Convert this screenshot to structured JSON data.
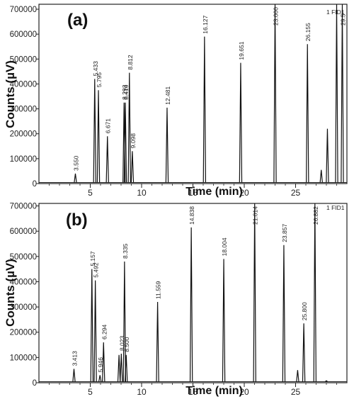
{
  "chart_data": [
    {
      "type": "line",
      "panel_label": "(a)",
      "xlabel": "Time (min)",
      "ylabel": "Counts (µV)",
      "xlim": [
        0,
        30
      ],
      "ylim": [
        0,
        720000
      ],
      "x_ticks": [
        5,
        10,
        15,
        20,
        25
      ],
      "y_ticks": [
        0,
        100000,
        200000,
        300000,
        400000,
        500000,
        600000,
        700000
      ],
      "y_tick_labels": [
        "0",
        "100000",
        "200000",
        "300000",
        "400000",
        "500000",
        "600000",
        "700000"
      ],
      "trace_label": "1 FID1",
      "grid": false,
      "peaks": [
        {
          "rt": 3.55,
          "label": "3.550",
          "height": 40000
        },
        {
          "rt": 5.433,
          "label": "5.433",
          "height": 420000
        },
        {
          "rt": 5.795,
          "label": "5.795",
          "height": 375000
        },
        {
          "rt": 6.671,
          "label": "6.671",
          "height": 190000
        },
        {
          "rt": 8.293,
          "label": "8.293",
          "height": 325000
        },
        {
          "rt": 8.416,
          "label": "8.416",
          "height": 325000
        },
        {
          "rt": 8.812,
          "label": "8.812",
          "height": 445000
        },
        {
          "rt": 9.098,
          "label": "9.098",
          "height": 130000
        },
        {
          "rt": 12.481,
          "label": "12.481",
          "height": 305000
        },
        {
          "rt": 16.127,
          "label": "16.127",
          "height": 590000
        },
        {
          "rt": 19.651,
          "label": "19.651",
          "height": 485000
        },
        {
          "rt": 23.0,
          "label": "23.000",
          "height": 720000
        },
        {
          "rt": 26.155,
          "label": "26.155",
          "height": 560000
        },
        {
          "rt": 27.5,
          "label": "",
          "height": 55000
        },
        {
          "rt": 28.1,
          "label": "",
          "height": 220000
        },
        {
          "rt": 29.0,
          "label": "",
          "height": 720000
        },
        {
          "rt": 29.55,
          "label": "29.5",
          "height": 720000
        }
      ]
    },
    {
      "type": "line",
      "panel_label": "(b)",
      "xlabel": "Time (min)",
      "ylabel": "Counts (µV)",
      "xlim": [
        0,
        30
      ],
      "ylim": [
        0,
        710000
      ],
      "x_ticks": [
        5,
        10,
        15,
        20,
        25
      ],
      "y_ticks": [
        0,
        100000,
        200000,
        300000,
        400000,
        500000,
        600000,
        700000
      ],
      "y_tick_labels": [
        "0",
        "100000",
        "200000",
        "300000",
        "400000",
        "500000",
        "600000",
        "700000"
      ],
      "trace_label": "1 FID1",
      "grid": false,
      "peaks": [
        {
          "rt": 3.413,
          "label": "3.413",
          "height": 55000
        },
        {
          "rt": 5.157,
          "label": "5.157",
          "height": 450000
        },
        {
          "rt": 5.492,
          "label": "5.492",
          "height": 405000
        },
        {
          "rt": 5.946,
          "label": "5.946",
          "height": 30000
        },
        {
          "rt": 6.294,
          "label": "6.294",
          "height": 160000
        },
        {
          "rt": 7.8,
          "label": "",
          "height": 110000
        },
        {
          "rt": 8.023,
          "label": "8.023",
          "height": 115000
        },
        {
          "rt": 8.335,
          "label": "8.335",
          "height": 480000
        },
        {
          "rt": 8.5,
          "label": "8.500",
          "height": 110000
        },
        {
          "rt": 11.559,
          "label": "11.559",
          "height": 320000
        },
        {
          "rt": 14.838,
          "label": "14.838",
          "height": 615000
        },
        {
          "rt": 18.004,
          "label": "18.004",
          "height": 490000
        },
        {
          "rt": 21.014,
          "label": "21.014",
          "height": 710000
        },
        {
          "rt": 23.857,
          "label": "23.857",
          "height": 545000
        },
        {
          "rt": 25.2,
          "label": "",
          "height": 50000
        },
        {
          "rt": 25.8,
          "label": "25.800",
          "height": 235000
        },
        {
          "rt": 26.882,
          "label": "26.882",
          "height": 710000
        },
        {
          "rt": 28.0,
          "label": "",
          "height": 8000
        }
      ]
    }
  ]
}
